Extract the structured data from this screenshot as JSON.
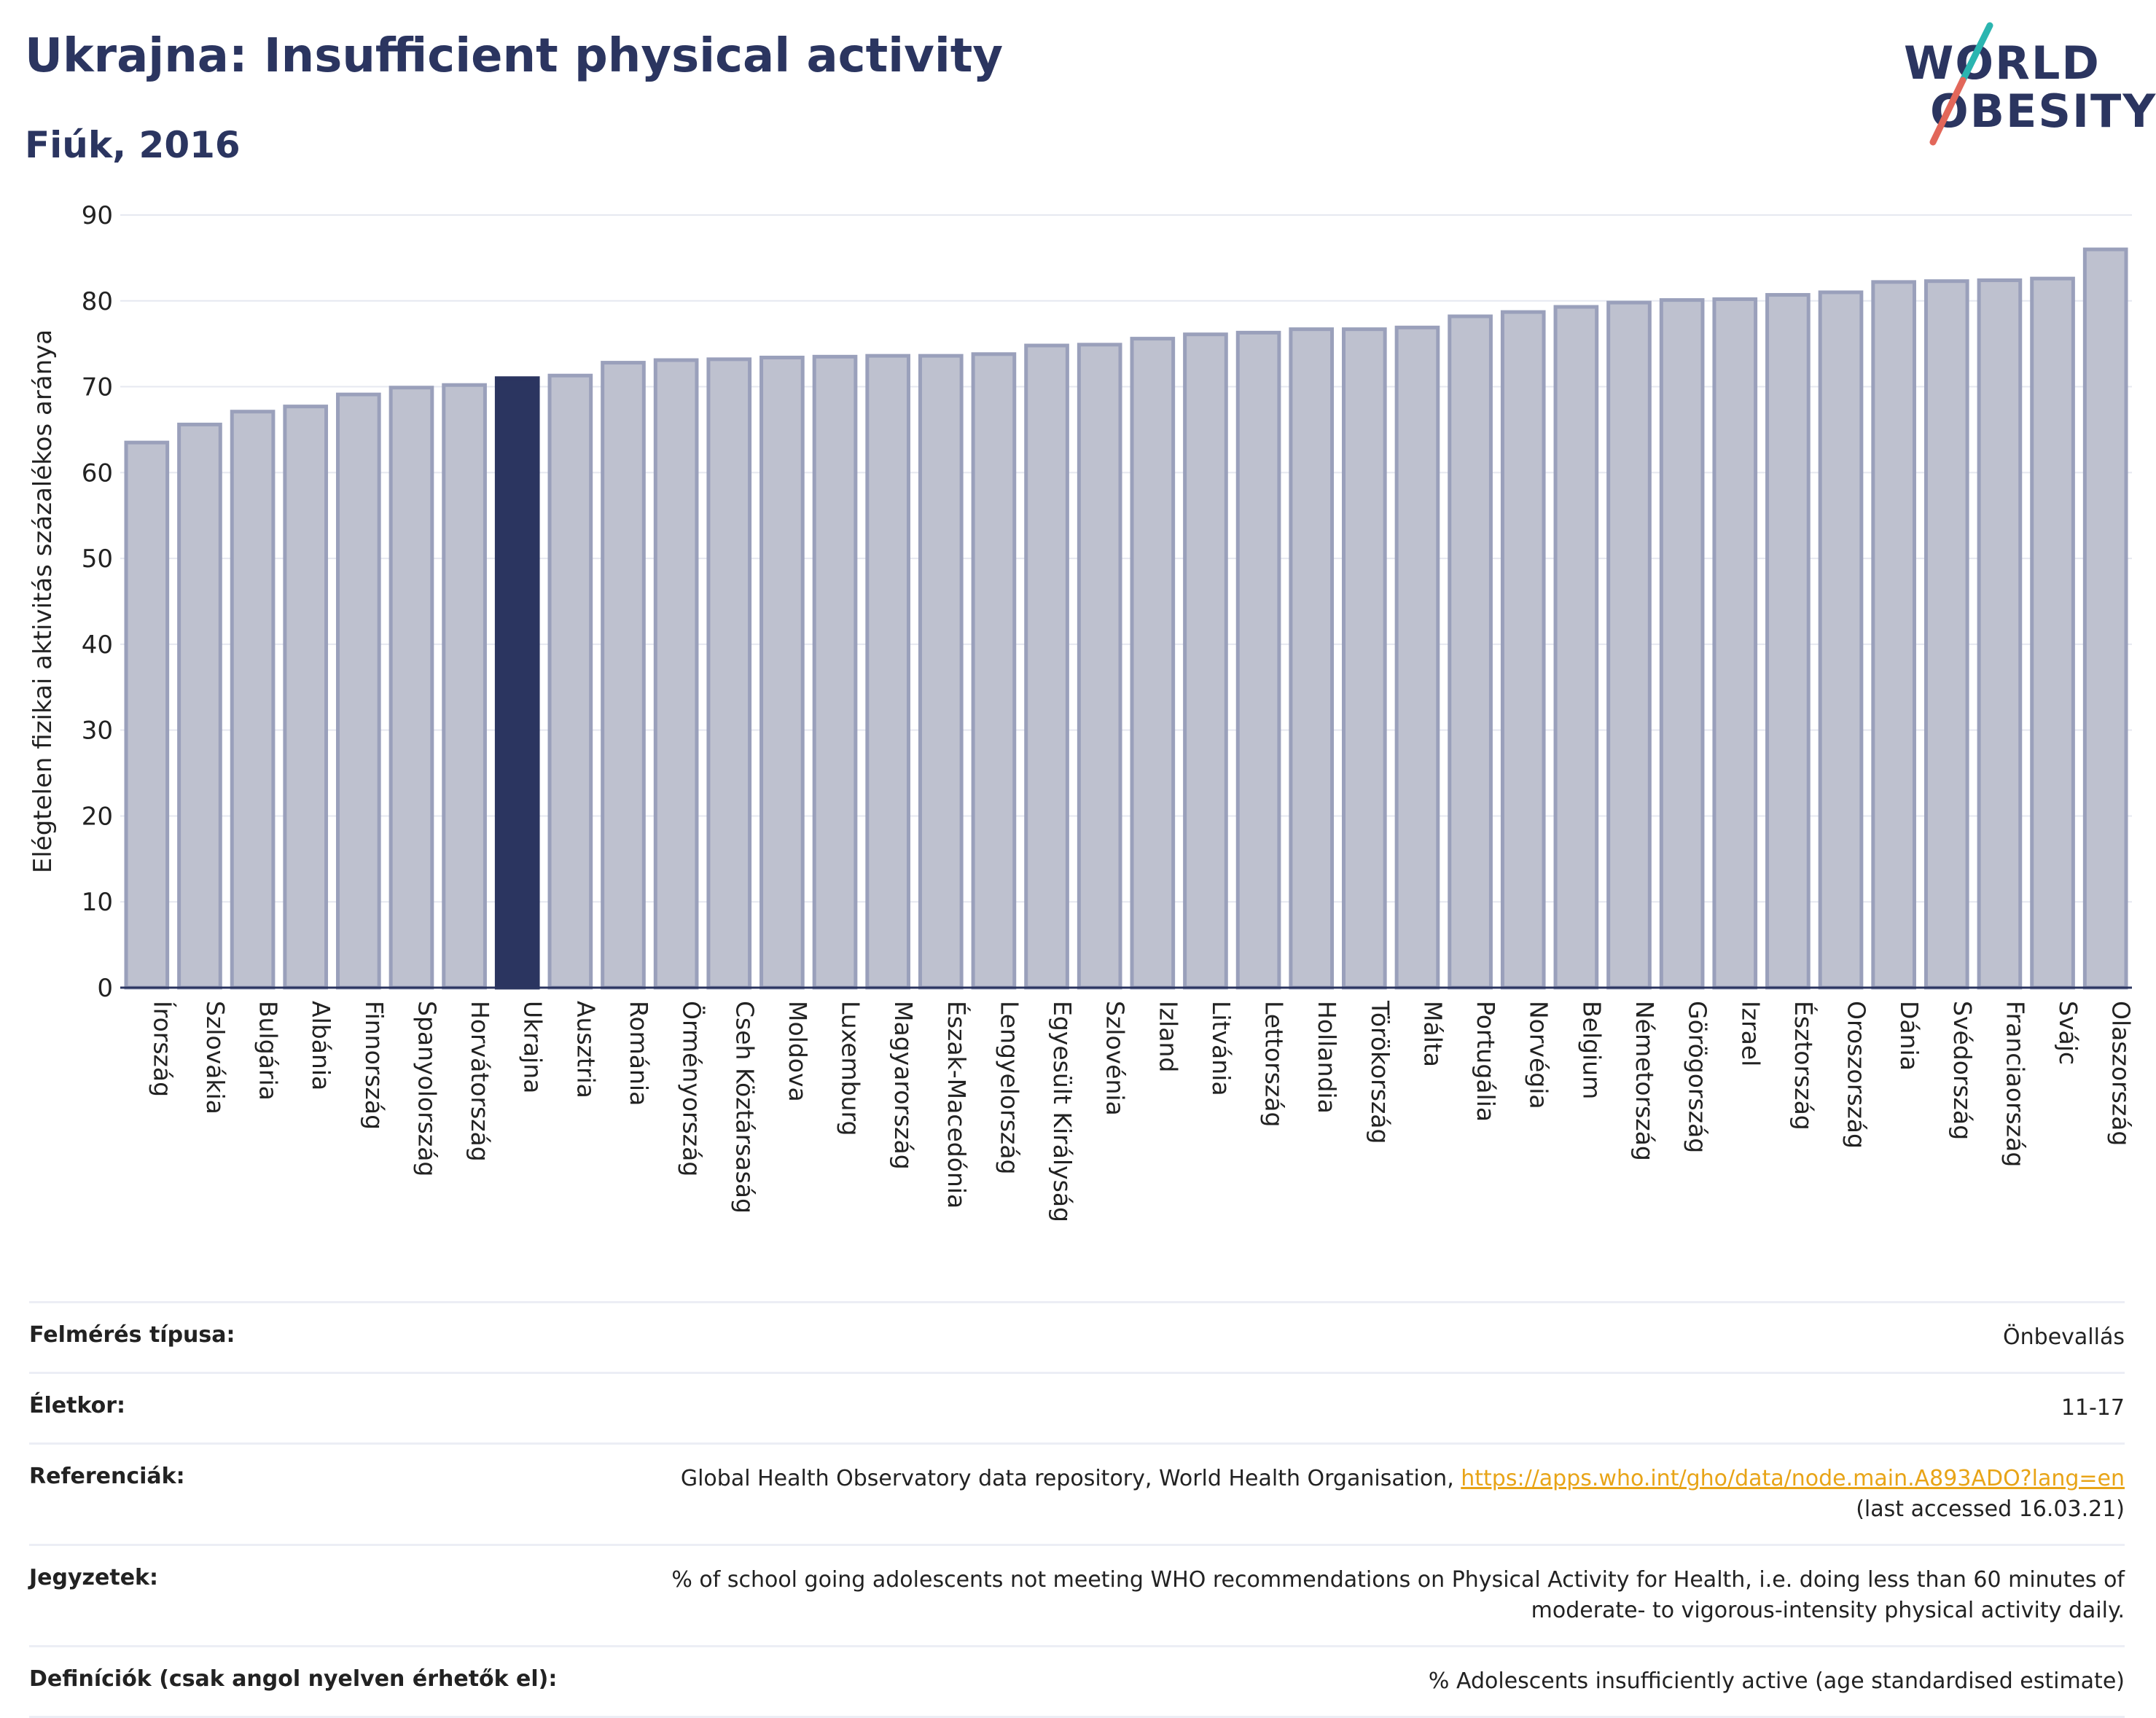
{
  "header": {
    "title": "Ukrajna: Insufficient physical activity",
    "subtitle": "Fiúk, 2016"
  },
  "logo": {
    "line1": "WORLD",
    "line2": "OBESITY"
  },
  "colors": {
    "highlight": "#2b3560",
    "bar": "#bec1cf",
    "bar_border": "#9aa0bb",
    "accent_teal": "#2bb5b0",
    "accent_red": "#e2675a",
    "link": "#e8a417"
  },
  "chart_data": {
    "type": "bar",
    "ylabel": "Elégtelen fizikai aktivitás százalékos aránya",
    "ylim": [
      0,
      90
    ],
    "yticks": [
      0,
      10,
      20,
      30,
      40,
      50,
      60,
      70,
      80,
      90
    ],
    "grid": true,
    "highlight": "Ukrajna",
    "categories": [
      "Írország",
      "Szlovákia",
      "Bulgária",
      "Albánia",
      "Finnország",
      "Spanyolország",
      "Horvátország",
      "Ukrajna",
      "Ausztria",
      "Románia",
      "Örményország",
      "Cseh Köztársaság",
      "Moldova",
      "Luxemburg",
      "Magyarország",
      "Észak-Macedónia",
      "Lengyelország",
      "Egyesült Királyság",
      "Szlovénia",
      "Izland",
      "Litvánia",
      "Lettország",
      "Hollandia",
      "Törökország",
      "Málta",
      "Portugália",
      "Norvégia",
      "Belgium",
      "Németország",
      "Görögország",
      "Izrael",
      "Észtország",
      "Oroszország",
      "Dánia",
      "Svédország",
      "Franciaország",
      "Svájc",
      "Olaszország"
    ],
    "values": [
      63.5,
      65.6,
      67.1,
      67.7,
      69.1,
      69.9,
      70.2,
      71.0,
      71.3,
      72.8,
      73.1,
      73.2,
      73.4,
      73.5,
      73.6,
      73.6,
      73.8,
      74.8,
      74.9,
      75.6,
      76.1,
      76.3,
      76.7,
      76.7,
      76.9,
      78.2,
      78.7,
      79.3,
      79.8,
      80.1,
      80.2,
      80.7,
      81.0,
      82.2,
      82.3,
      82.4,
      82.6,
      86.0
    ]
  },
  "info": {
    "rows": [
      {
        "label": "Felmérés típusa:",
        "value": "Önbevallás"
      },
      {
        "label": "Életkor:",
        "value": "11-17"
      },
      {
        "label": "Referenciák:",
        "value": "Global Health Observatory data repository, World Health Organisation, ",
        "link": "https://apps.who.int/gho/data/node.main.A893ADO?lang=en",
        "value2": "(last accessed 16.03.21)"
      },
      {
        "label": "Jegyzetek:",
        "value": "% of school going adolescents not meeting WHO recommendations on Physical Activity for Health, i.e. doing less than 60 minutes of moderate- to vigorous-intensity physical activity daily."
      },
      {
        "label": "Definíciók (csak angol nyelven érhetők el):",
        "value": "% Adolescents insufficiently active (age standardised estimate)"
      }
    ]
  }
}
